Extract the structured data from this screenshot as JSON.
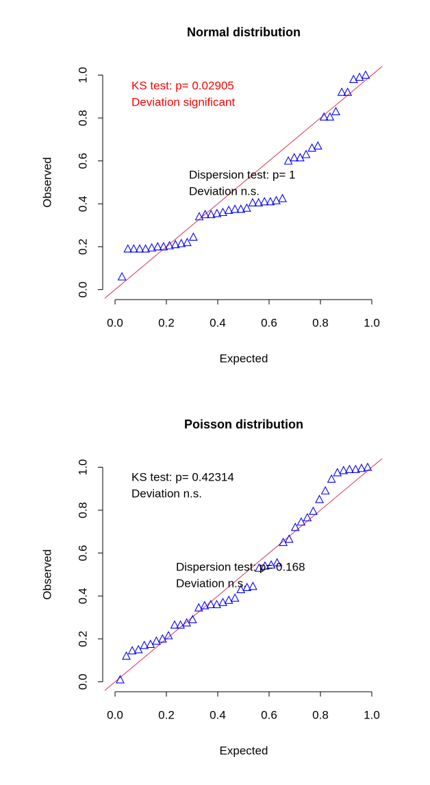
{
  "chart_data": [
    {
      "type": "scatter",
      "title": "Normal distribution",
      "xlabel": "Expected",
      "ylabel": "Observed",
      "x": [
        0.027,
        0.05,
        0.073,
        0.096,
        0.119,
        0.143,
        0.166,
        0.189,
        0.212,
        0.235,
        0.258,
        0.281,
        0.305,
        0.328,
        0.351,
        0.374,
        0.397,
        0.42,
        0.443,
        0.467,
        0.49,
        0.513,
        0.536,
        0.559,
        0.582,
        0.605,
        0.628,
        0.652,
        0.675,
        0.698,
        0.721,
        0.744,
        0.767,
        0.79,
        0.814,
        0.837,
        0.86,
        0.883,
        0.906,
        0.929,
        0.952,
        0.976
      ],
      "y": [
        0.06,
        0.19,
        0.19,
        0.19,
        0.19,
        0.195,
        0.2,
        0.2,
        0.205,
        0.21,
        0.215,
        0.22,
        0.245,
        0.34,
        0.35,
        0.35,
        0.355,
        0.36,
        0.37,
        0.375,
        0.375,
        0.38,
        0.405,
        0.405,
        0.41,
        0.41,
        0.415,
        0.425,
        0.6,
        0.615,
        0.615,
        0.63,
        0.66,
        0.67,
        0.805,
        0.805,
        0.83,
        0.92,
        0.92,
        0.98,
        0.99,
        1.0
      ],
      "color": "#0000ff",
      "reference_line": {
        "slope": 1,
        "intercept": 0,
        "color": "#df536b"
      },
      "annotations": [
        {
          "lines": [
            "KS test: p= 0.02905",
            "Deviation  significant"
          ],
          "color": "#ff0000"
        },
        {
          "lines": [
            "Dispersion test: p= 1",
            "Deviation  n.s."
          ],
          "color": "#000000"
        }
      ],
      "xlim": [
        -0.04,
        1.04
      ],
      "ylim": [
        -0.04,
        1.04
      ],
      "xticks": [
        {
          "value": 0,
          "label": "0.0"
        },
        0.2,
        0.4,
        0.6,
        0.8,
        {
          "value": 1,
          "label": "1.0"
        }
      ],
      "yticks": [
        {
          "value": 0,
          "label": "0.0"
        },
        0.2,
        0.4,
        0.6,
        0.8,
        {
          "value": 1,
          "label": "1.0"
        }
      ]
    },
    {
      "type": "scatter",
      "title": "Poisson distribution",
      "xlabel": "Expected",
      "ylabel": "Observed",
      "x": [
        0.02,
        0.044,
        0.067,
        0.091,
        0.114,
        0.138,
        0.161,
        0.185,
        0.208,
        0.232,
        0.255,
        0.279,
        0.302,
        0.326,
        0.349,
        0.373,
        0.396,
        0.42,
        0.443,
        0.467,
        0.49,
        0.514,
        0.537,
        0.561,
        0.584,
        0.608,
        0.631,
        0.655,
        0.678,
        0.702,
        0.725,
        0.749,
        0.772,
        0.796,
        0.819,
        0.843,
        0.866,
        0.89,
        0.913,
        0.937,
        0.96,
        0.984
      ],
      "y": [
        0.01,
        0.12,
        0.145,
        0.15,
        0.17,
        0.175,
        0.19,
        0.2,
        0.215,
        0.265,
        0.265,
        0.275,
        0.29,
        0.345,
        0.355,
        0.36,
        0.36,
        0.37,
        0.38,
        0.39,
        0.43,
        0.44,
        0.445,
        0.53,
        0.54,
        0.545,
        0.555,
        0.65,
        0.665,
        0.72,
        0.745,
        0.765,
        0.795,
        0.85,
        0.89,
        0.945,
        0.975,
        0.985,
        0.99,
        0.99,
        0.995,
        1.0
      ],
      "color": "#0000ff",
      "reference_line": {
        "slope": 1,
        "intercept": 0,
        "color": "#df536b"
      },
      "annotations": [
        {
          "lines": [
            "KS test: p= 0.42314",
            "Deviation  n.s."
          ],
          "color": "#000000"
        },
        {
          "lines": [
            "Dispersion test: p= 0.168",
            "Deviation  n.s."
          ],
          "color": "#000000"
        }
      ],
      "xlim": [
        -0.04,
        1.04
      ],
      "ylim": [
        -0.04,
        1.04
      ],
      "xticks": [
        {
          "value": 0,
          "label": "0.0"
        },
        0.2,
        0.4,
        0.6,
        0.8,
        {
          "value": 1,
          "label": "1.0"
        }
      ],
      "yticks": [
        {
          "value": 0,
          "label": "0.0"
        },
        0.2,
        0.4,
        0.6,
        0.8,
        {
          "value": 1,
          "label": "1.0"
        }
      ]
    }
  ]
}
